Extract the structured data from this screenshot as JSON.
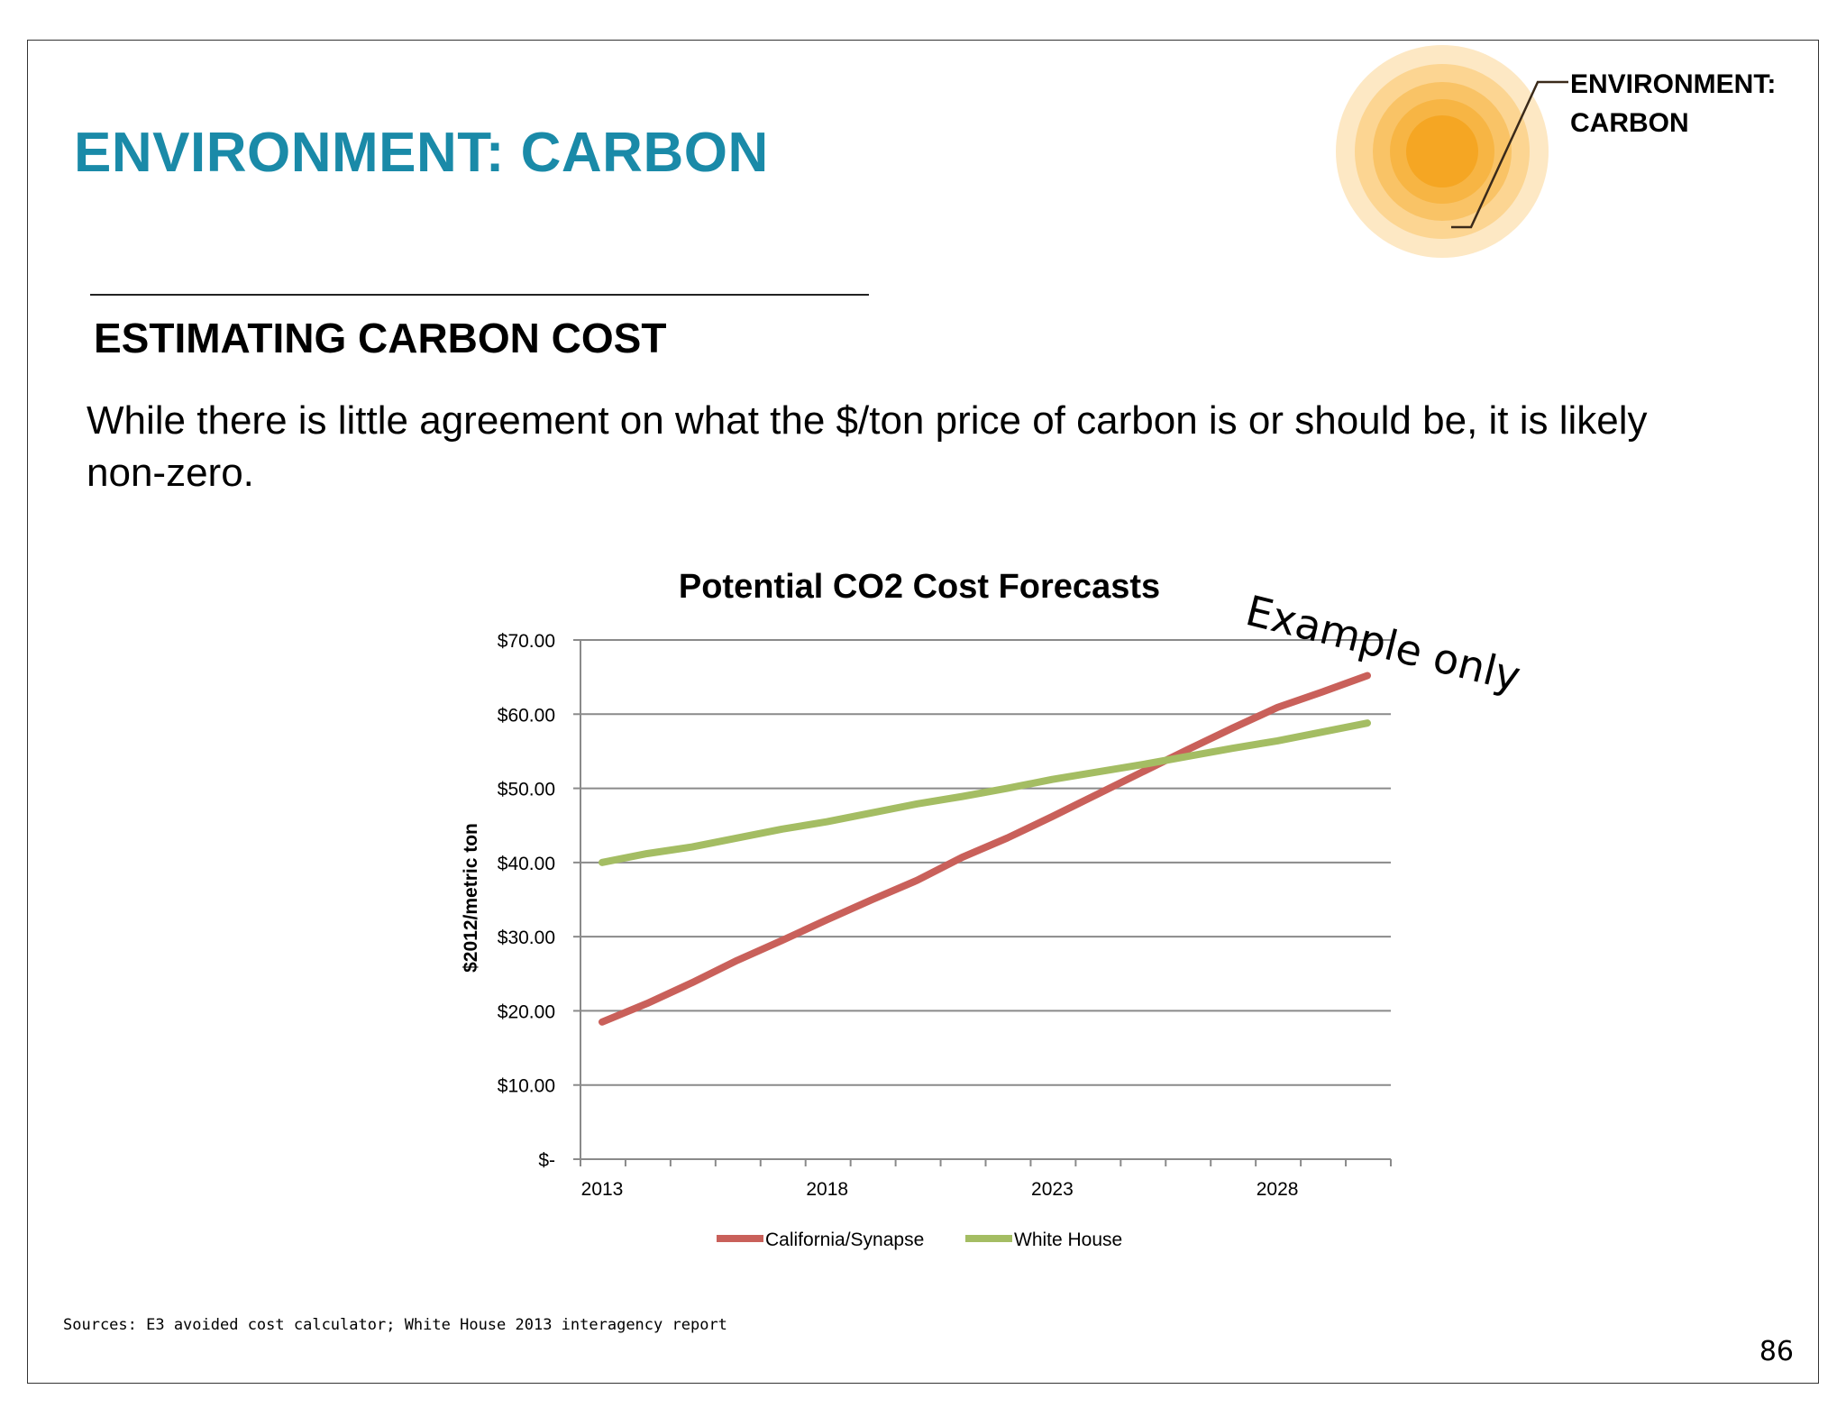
{
  "slide": {
    "title": "ENVIRONMENT: CARBON",
    "section_heading": "ESTIMATING CARBON COST",
    "body": "While there is little agreement on what the $/ton price of carbon is or should be, it is likely non-zero.",
    "badge": {
      "line1": "ENVIRONMENT:",
      "line2": "CARBON"
    },
    "stamp": "Example only",
    "sources": "Sources: E3 avoided cost calculator; White House 2013 interagency report",
    "page_number": "86"
  },
  "colors": {
    "title": "#1a8aa8",
    "california": "#c9605a",
    "white_house": "#a4bd63",
    "sun_core": "#f5a623"
  },
  "chart_data": {
    "type": "line",
    "title": "Potential CO2 Cost Forecasts",
    "xlabel": "",
    "ylabel": "$2012/metric ton",
    "x": [
      2013,
      2014,
      2015,
      2016,
      2017,
      2018,
      2019,
      2020,
      2021,
      2022,
      2023,
      2024,
      2025,
      2026,
      2027,
      2028,
      2029,
      2030
    ],
    "x_tick_labels": [
      "2013",
      "2018",
      "2023",
      "2028"
    ],
    "y_tick_labels": [
      "$-",
      "$10.00",
      "$20.00",
      "$30.00",
      "$40.00",
      "$50.00",
      "$60.00",
      "$70.00"
    ],
    "ylim": [
      0,
      70
    ],
    "grid": true,
    "legend_position": "bottom",
    "series": [
      {
        "name": "California/Synapse",
        "values": [
          18.5,
          21.0,
          23.8,
          26.8,
          29.5,
          32.3,
          35.0,
          37.6,
          40.7,
          43.3,
          46.2,
          49.2,
          52.2,
          55.2,
          58.1,
          60.9,
          63.0,
          65.2
        ]
      },
      {
        "name": "White House",
        "values": [
          40.0,
          41.2,
          42.1,
          43.3,
          44.5,
          45.5,
          46.7,
          47.9,
          48.9,
          50.0,
          51.2,
          52.2,
          53.2,
          54.3,
          55.4,
          56.4,
          57.6,
          58.8
        ]
      }
    ]
  }
}
